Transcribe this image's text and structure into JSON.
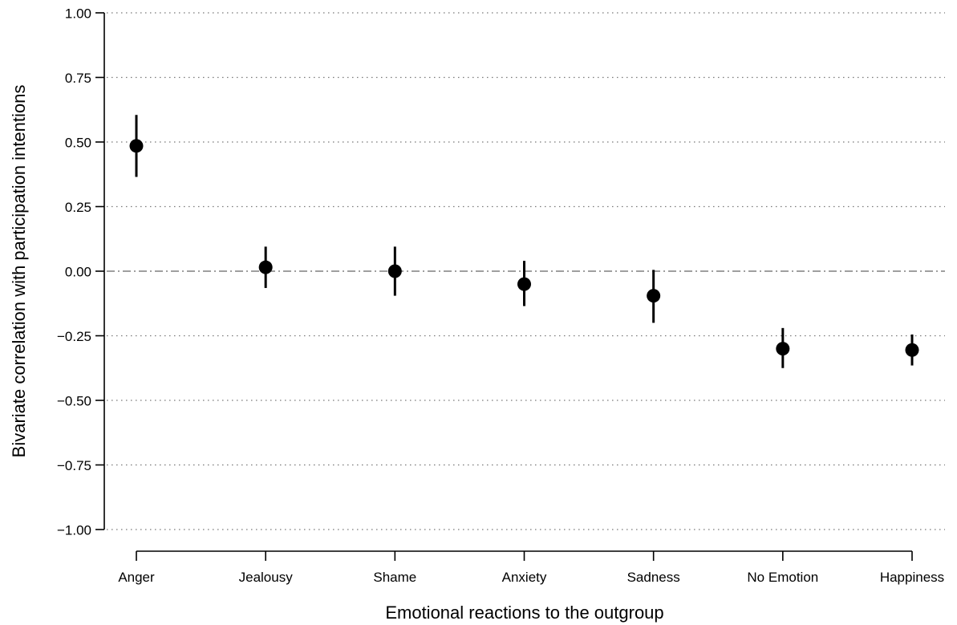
{
  "chart_data": {
    "type": "scatter",
    "title": "",
    "xlabel": "Emotional reactions to the outgroup",
    "ylabel": "Bivariate correlation with participation intentions",
    "categories": [
      "Anger",
      "Jealousy",
      "Shame",
      "Anxiety",
      "Sadness",
      "No Emotion",
      "Happiness"
    ],
    "values": [
      0.485,
      0.015,
      0.0,
      -0.05,
      -0.095,
      -0.3,
      -0.305
    ],
    "ci_lower": [
      0.365,
      -0.065,
      -0.095,
      -0.135,
      -0.2,
      -0.375,
      -0.365
    ],
    "ci_upper": [
      0.605,
      0.095,
      0.095,
      0.04,
      0.005,
      -0.22,
      -0.245
    ],
    "ylim": [
      -1.0,
      1.0
    ],
    "yticks": [
      1.0,
      0.75,
      0.5,
      0.25,
      0.0,
      -0.25,
      -0.5,
      -0.75,
      -1.0
    ],
    "ytick_labels": [
      "1.00",
      "0.75",
      "0.50",
      "0.25",
      "0.00",
      "−0.25",
      "−0.50",
      "−0.75",
      "−1.00"
    ],
    "grid": "horizontal dotted",
    "reference_line": 0.0,
    "legend": "none",
    "colors": {
      "point": "#000000",
      "grid": "#777777",
      "reference": "#666666"
    }
  }
}
